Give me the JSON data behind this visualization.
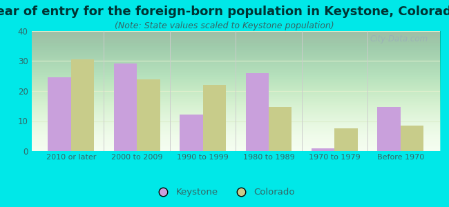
{
  "title": "Year of entry for the foreign-born population in Keystone, Colorado",
  "subtitle": "(Note: State values scaled to Keystone population)",
  "categories": [
    "2010 or later",
    "2000 to 2009",
    "1990 to 1999",
    "1980 to 1989",
    "1970 to 1979",
    "Before 1970"
  ],
  "keystone_values": [
    24.5,
    29.3,
    12.2,
    26.0,
    1.0,
    14.8
  ],
  "colorado_values": [
    30.5,
    24.0,
    22.0,
    14.7,
    7.5,
    8.5
  ],
  "keystone_color": "#c9a0dc",
  "colorado_color": "#c8cc8a",
  "background_color": "#00e8e8",
  "ylim": [
    0,
    40
  ],
  "yticks": [
    0,
    10,
    20,
    30,
    40
  ],
  "bar_width": 0.35,
  "title_fontsize": 13,
  "subtitle_fontsize": 9,
  "legend_labels": [
    "Keystone",
    "Colorado"
  ],
  "watermark": "City-Data.com",
  "title_color": "#003333",
  "subtitle_color": "#336666",
  "tick_color": "#336666",
  "grid_color": "#ddeecc",
  "separator_color": "#cccccc"
}
